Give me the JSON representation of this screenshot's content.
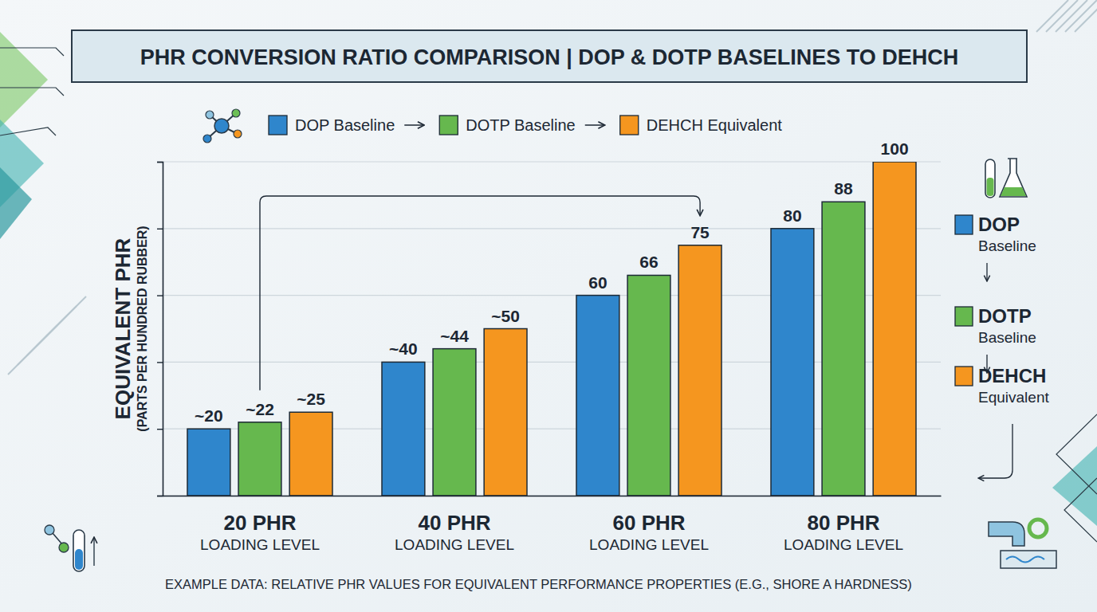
{
  "chart_data": {
    "type": "bar",
    "title": "PHR CONVERSION RATIO COMPARISON | DOP & DOTP BASELINES TO DEHCH",
    "ylabel": "EQUIVALENT PHR",
    "ylabel_subtitle": "(PARTS PER HUNDRED RUBBER)",
    "footnote": "EXAMPLE DATA: RELATIVE PHR VALUES FOR EQUIVALENT PERFORMANCE PROPERTIES (E.G., SHORE A HARDNESS)",
    "categories": [
      "20 PHR\nLOADING LEVEL",
      "40 PHR\nLOADING LEVEL",
      "60 PHR\nLOADING LEVEL",
      "80 PHR\nLOADING LEVEL"
    ],
    "series": [
      {
        "name": "DOP Baseline",
        "color": "#2f86cc",
        "values": [
          20,
          40,
          60,
          80
        ],
        "value_labels": [
          "~20",
          "~40",
          "60",
          "80"
        ]
      },
      {
        "name": "DOTP Baseline",
        "color": "#66b84e",
        "values": [
          22,
          44,
          66,
          88
        ],
        "value_labels": [
          "~22",
          "~44",
          "66",
          "88"
        ]
      },
      {
        "name": "DEHCH Equivalent",
        "color": "#f5961f",
        "values": [
          25,
          50,
          75,
          100
        ],
        "value_labels": [
          "~25",
          "~50",
          "75",
          "100"
        ]
      }
    ],
    "ylim": [
      0,
      100
    ],
    "yticks": [
      0,
      20,
      40,
      60,
      80,
      100
    ],
    "grid": true,
    "legend": "top",
    "data_labels": true,
    "tick_labels": "x"
  }
}
